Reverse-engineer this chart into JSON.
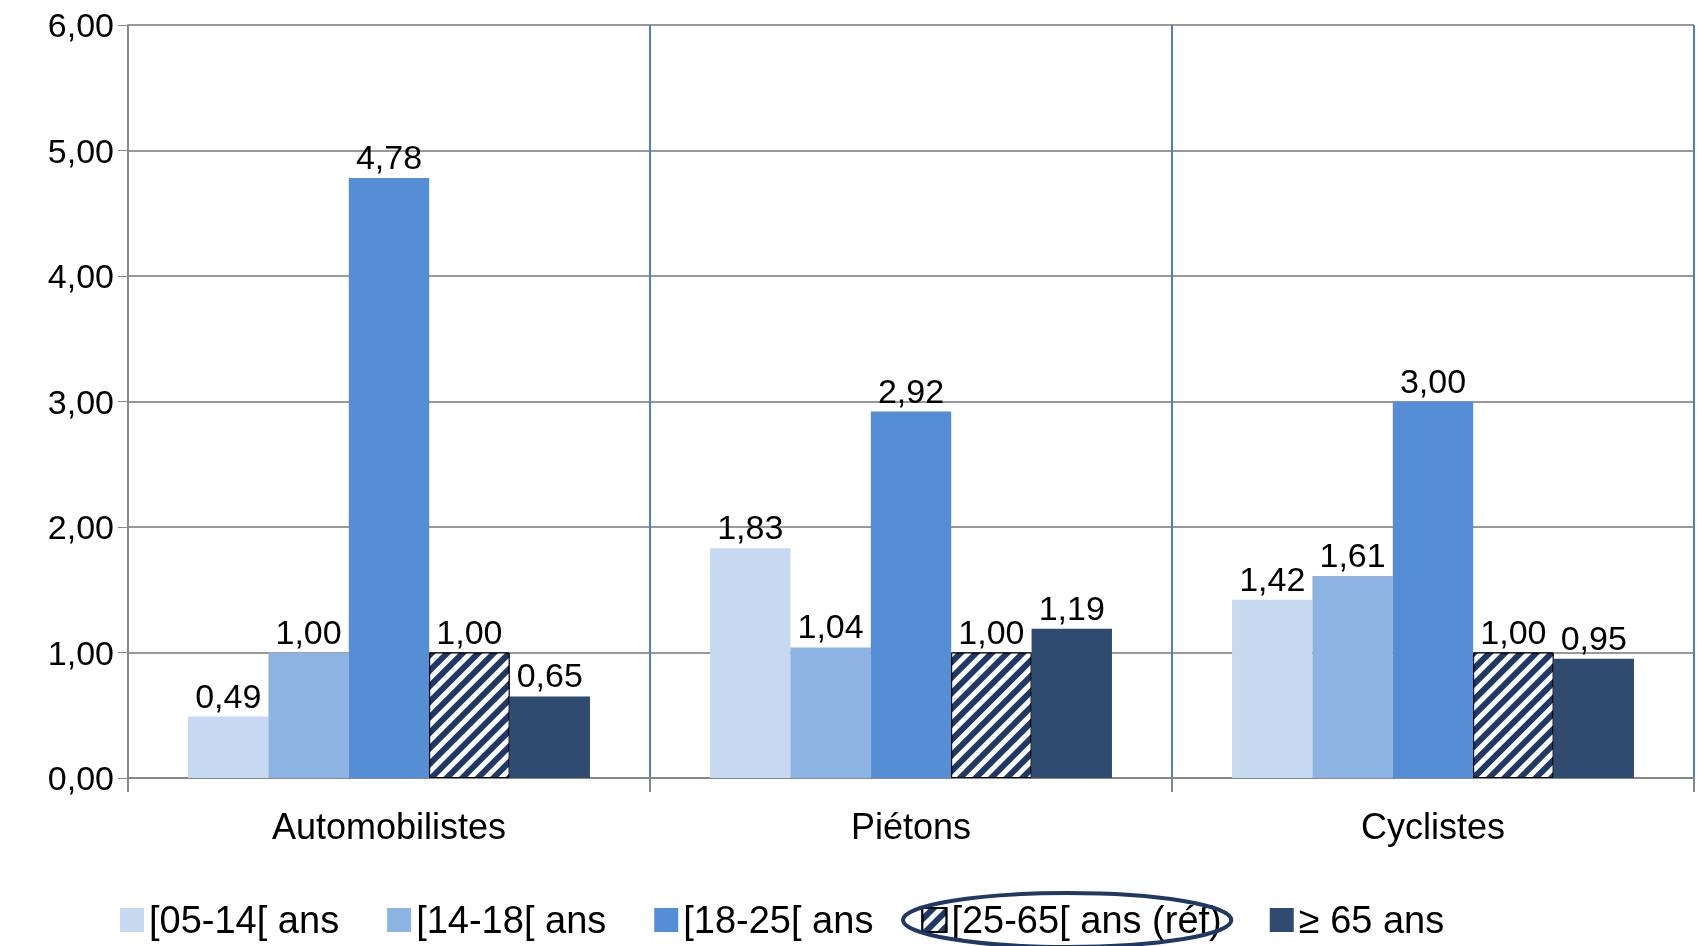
{
  "chart_data": {
    "type": "bar",
    "categories": [
      "Automobilistes",
      "Piétons",
      "Cyclistes"
    ],
    "series": [
      {
        "name": "[05-14[ ans",
        "color": "#c6d9f0",
        "values": [
          0.49,
          1.83,
          1.42
        ],
        "value_labels": [
          "0,49",
          "1,83",
          "1,42"
        ]
      },
      {
        "name": "[14-18[ ans",
        "color": "#8db3e2",
        "values": [
          1.0,
          1.04,
          1.61
        ],
        "value_labels": [
          "1,00",
          "1,04",
          "1,61"
        ]
      },
      {
        "name": "[18-25[ ans",
        "color": "#558ed5",
        "values": [
          4.78,
          2.92,
          3.0
        ],
        "value_labels": [
          "4,78",
          "2,92",
          "3,00"
        ]
      },
      {
        "name": "[25-65[ ans (réf)",
        "color": "#1f3864",
        "values": [
          1.0,
          1.0,
          1.0
        ],
        "value_labels": [
          "1,00",
          "1,00",
          "1,00"
        ]
      },
      {
        "name": "≥ 65 ans",
        "color": "#2f4b70",
        "values": [
          0.65,
          1.19,
          0.95
        ],
        "value_labels": [
          "0,65",
          "1,19",
          "0,95"
        ]
      }
    ],
    "ylim": [
      0,
      6
    ],
    "yticks": [
      {
        "value": 0,
        "label": "0,00"
      },
      {
        "value": 1,
        "label": "1,00"
      },
      {
        "value": 2,
        "label": "2,00"
      },
      {
        "value": 3,
        "label": "3,00"
      },
      {
        "value": 4,
        "label": "4,00"
      },
      {
        "value": 5,
        "label": "5,00"
      },
      {
        "value": 6,
        "label": "6,00"
      }
    ],
    "grid": true,
    "legend": "bottom"
  }
}
